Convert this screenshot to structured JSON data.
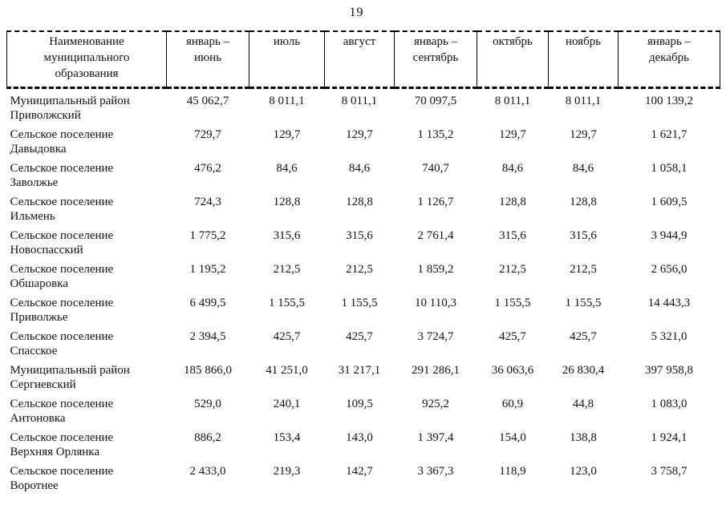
{
  "page": {
    "number": "19"
  },
  "table": {
    "columns": [
      {
        "label": "Наименование\nмуниципального\nобразования"
      },
      {
        "label": "январь –\nиюнь"
      },
      {
        "label": "июль"
      },
      {
        "label": "август"
      },
      {
        "label": "январь –\nсентябрь"
      },
      {
        "label": "октябрь"
      },
      {
        "label": "ноябрь"
      },
      {
        "label": "январь –\nдекабрь"
      }
    ],
    "rows": [
      {
        "name": "Муниципальный район\nПриволжский",
        "values": [
          "45 062,7",
          "8 011,1",
          "8 011,1",
          "70 097,5",
          "8 011,1",
          "8 011,1",
          "100 139,2"
        ]
      },
      {
        "name": "Сельское поселение\nДавыдовка",
        "values": [
          "729,7",
          "129,7",
          "129,7",
          "1 135,2",
          "129,7",
          "129,7",
          "1 621,7"
        ]
      },
      {
        "name": "Сельское поселение\nЗаволжье",
        "values": [
          "476,2",
          "84,6",
          "84,6",
          "740,7",
          "84,6",
          "84,6",
          "1 058,1"
        ]
      },
      {
        "name": "Сельское поселение\nИльмень",
        "values": [
          "724,3",
          "128,8",
          "128,8",
          "1 126,7",
          "128,8",
          "128,8",
          "1 609,5"
        ]
      },
      {
        "name": "Сельское поселение\nНовоспасский",
        "values": [
          "1 775,2",
          "315,6",
          "315,6",
          "2 761,4",
          "315,6",
          "315,6",
          "3 944,9"
        ]
      },
      {
        "name": "Сельское поселение\nОбшаровка",
        "values": [
          "1 195,2",
          "212,5",
          "212,5",
          "1 859,2",
          "212,5",
          "212,5",
          "2 656,0"
        ]
      },
      {
        "name": "Сельское поселение\nПриволжье",
        "values": [
          "6 499,5",
          "1 155,5",
          "1 155,5",
          "10 110,3",
          "1 155,5",
          "1 155,5",
          "14 443,3"
        ]
      },
      {
        "name": "Сельское поселение\nСпасское",
        "values": [
          "2 394,5",
          "425,7",
          "425,7",
          "3 724,7",
          "425,7",
          "425,7",
          "5 321,0"
        ]
      },
      {
        "name": "Муниципальный район\nСергиевский",
        "values": [
          "185 866,0",
          "41 251,0",
          "31 217,1",
          "291 286,1",
          "36 063,6",
          "26 830,4",
          "397 958,8"
        ]
      },
      {
        "name": "Сельское поселение\nАнтоновка",
        "values": [
          "529,0",
          "240,1",
          "109,5",
          "925,2",
          "60,9",
          "44,8",
          "1 083,0"
        ]
      },
      {
        "name": "Сельское поселение\nВерхняя Орлянка",
        "values": [
          "886,2",
          "153,4",
          "143,0",
          "1 397,4",
          "154,0",
          "138,8",
          "1 924,1"
        ]
      },
      {
        "name": "Сельское поселение\nВоротнее",
        "values": [
          "2 433,0",
          "219,3",
          "142,7",
          "3 367,3",
          "118,9",
          "123,0",
          "3 758,7"
        ]
      }
    ]
  }
}
